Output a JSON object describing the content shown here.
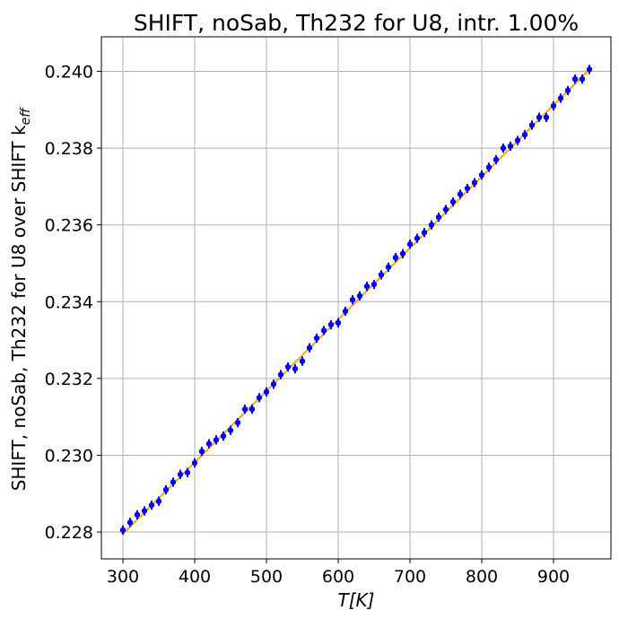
{
  "chart_data": {
    "type": "scatter",
    "title": "SHIFT, noSab, Th232 for U8, intr. 1.00%",
    "xlabel": "T[K]",
    "ylabel_main": "SHIFT, noSab, Th232 for U8 over SHIFT k",
    "ylabel_sub": "eff",
    "xlim": [
      270,
      980
    ],
    "ylim": [
      0.2273,
      0.2409
    ],
    "x_ticks": [
      300,
      400,
      500,
      600,
      700,
      800,
      900
    ],
    "y_ticks": [
      0.228,
      0.23,
      0.232,
      0.234,
      0.236,
      0.238,
      0.24
    ],
    "y_tick_labels": [
      "0.228",
      "0.230",
      "0.232",
      "0.234",
      "0.236",
      "0.238",
      "0.240"
    ],
    "grid": true,
    "colors": {
      "points": "#0000ff",
      "fit": "#ffa500",
      "grid": "#b0b0b0"
    },
    "fit_line": {
      "x": [
        300,
        950
      ],
      "y": [
        0.22795,
        0.24005
      ]
    },
    "series": [
      {
        "x": [
          300,
          310,
          320,
          330,
          340,
          350,
          360,
          370,
          380,
          390,
          400,
          410,
          420,
          430,
          440,
          450,
          460,
          470,
          480,
          490,
          500,
          510,
          520,
          530,
          540,
          550,
          560,
          570,
          580,
          590,
          600,
          610,
          620,
          630,
          640,
          650,
          660,
          670,
          680,
          690,
          700,
          710,
          720,
          730,
          740,
          750,
          760,
          770,
          780,
          790,
          800,
          810,
          820,
          830,
          840,
          850,
          860,
          870,
          880,
          890,
          900,
          910,
          920,
          930,
          940,
          950
        ],
        "y": [
          0.22805,
          0.22825,
          0.22845,
          0.22855,
          0.2287,
          0.2288,
          0.2291,
          0.2293,
          0.2295,
          0.22955,
          0.2298,
          0.2301,
          0.2303,
          0.2304,
          0.2305,
          0.23065,
          0.23085,
          0.2312,
          0.2312,
          0.2315,
          0.23165,
          0.23185,
          0.2321,
          0.2323,
          0.23225,
          0.23245,
          0.2328,
          0.23305,
          0.23325,
          0.2334,
          0.23345,
          0.23375,
          0.23405,
          0.23415,
          0.2344,
          0.23445,
          0.2347,
          0.2349,
          0.23515,
          0.23525,
          0.2355,
          0.23565,
          0.2358,
          0.236,
          0.2362,
          0.2364,
          0.2366,
          0.2368,
          0.23695,
          0.2371,
          0.2373,
          0.2375,
          0.2377,
          0.238,
          0.23805,
          0.2382,
          0.23835,
          0.2386,
          0.2388,
          0.2388,
          0.2391,
          0.2393,
          0.2395,
          0.2398,
          0.2398,
          0.24005
        ],
        "yerr": 0.00012
      }
    ]
  }
}
